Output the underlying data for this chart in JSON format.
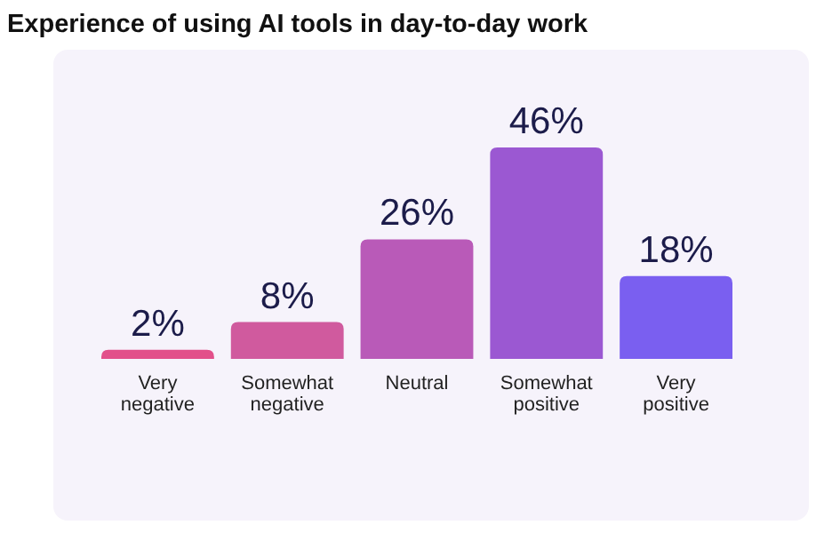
{
  "chart_data": {
    "type": "bar",
    "title": "Experience of using AI tools in day-to-day work",
    "categories": [
      "Very negative",
      "Somewhat negative",
      "Neutral",
      "Somewhat positive",
      "Very positive"
    ],
    "values": [
      2,
      8,
      26,
      46,
      18
    ],
    "colors": [
      "#e2508a",
      "#d05a9e",
      "#b95ab8",
      "#9b58d2",
      "#7a5ff0"
    ],
    "value_labels": [
      "2%",
      "8%",
      "26%",
      "46%",
      "18%"
    ]
  }
}
